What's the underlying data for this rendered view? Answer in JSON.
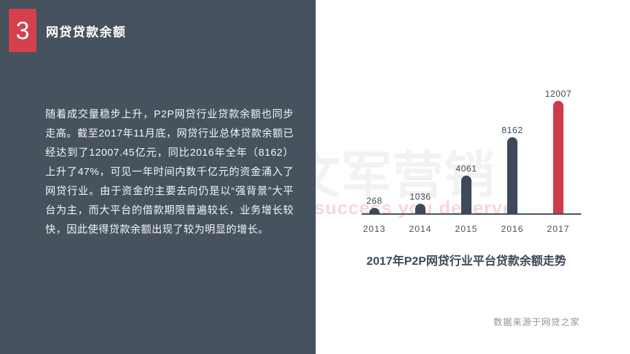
{
  "slide": {
    "section_number": "3",
    "section_title": "网贷贷款余额",
    "body_text": "随着成交量稳步上升，P2P网贷行业贷款余额也同步走高。截至2017年11月底，网贷行业总体贷款余额已经达到了12007.45亿元，同比2016年全年（8162）上升了47%，可见一年时间内数千亿元的资金涌入了网贷行业。由于资金的主要去向仍是以“强背景”大平台为主，而大平台的借款期限普遍较长，业务增长较快，因此使得贷款余额出现了较为明显的增长。"
  },
  "watermark": {
    "cn": "文军营销",
    "en": "success you deserve"
  },
  "chart_data": {
    "type": "bar",
    "title": "2017年P2P网贷行业平台贷款余额走势",
    "categories": [
      "2013",
      "2014",
      "2015",
      "2016",
      "2017"
    ],
    "values": [
      268,
      1036,
      4061,
      8162,
      12007
    ],
    "highlight_index": 4,
    "xlabel": "",
    "ylabel": "",
    "ylim": [
      0,
      12007
    ],
    "grid": false,
    "legend": false,
    "data_labels": true,
    "source": "数据来源于网贷之家",
    "colors": {
      "bar": "#3E4A59",
      "highlight": "#CE3B46"
    }
  },
  "colors": {
    "panel_bg": "#47525F",
    "badge_bg": "#D4404B",
    "accent_red": "#CE3B46",
    "bar_dark": "#3E4A59",
    "watermark_cn": "#F2F2F2",
    "watermark_en": "#F6D7DA"
  }
}
